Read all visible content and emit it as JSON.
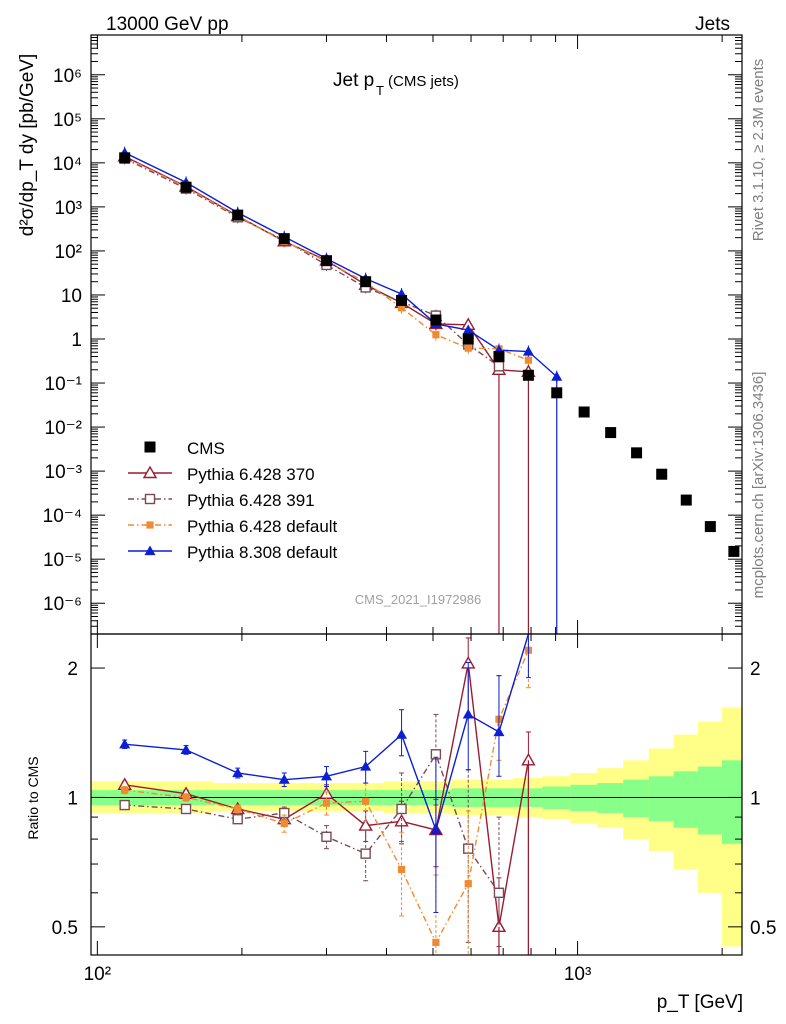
{
  "header": {
    "left": "13000 GeV pp",
    "right": "Jets"
  },
  "side": {
    "rivet": "Rivet 3.1.10, ≥ 2.3M events",
    "mcplots": "mcplots.cern.ch [arXiv:1306.3436]"
  },
  "plot": {
    "title_main": "Jet p",
    "title_sub": "T",
    "title_extra": "(CMS jets)",
    "analysis": "CMS_2021_I1972986",
    "ylabel_top": "d²σ/dp_T dy [pb/GeV]",
    "ylabel_bottom": "Ratio to CMS",
    "xlabel": "p_T [GeV]"
  },
  "chart_data": [
    {
      "type": "scatter",
      "panel": "main",
      "xscale": "log",
      "yscale": "log",
      "xlim": [
        97,
        2200
      ],
      "ylim": [
        2e-07,
        8000000.0
      ],
      "xlabel": "p_T [GeV]",
      "ylabel": "d²σ/dp_T dy [pb/GeV]",
      "x_ticks": [
        "10²",
        "10³"
      ],
      "y_ticks": [
        "10⁻⁶",
        "10⁻⁵",
        "10⁻⁴",
        "10⁻³",
        "10⁻²",
        "10⁻¹",
        "1",
        "10",
        "10²",
        "10³",
        "10⁴",
        "10⁵",
        "10⁶"
      ],
      "legend_position": "bottom-left",
      "series": [
        {
          "name": "CMS",
          "color": "#000000",
          "marker": "square",
          "x": [
            114,
            153,
            196,
            245,
            300,
            362,
            430,
            507,
            592,
            686,
            790,
            905,
            1032,
            1172,
            1327,
            1497,
            1684,
            1890,
            2116
          ],
          "y": [
            13000,
            2800,
            650,
            190,
            60,
            20,
            7.5,
            2.7,
            1.0,
            0.4,
            0.15,
            0.06,
            0.022,
            0.0075,
            0.0026,
            0.00085,
            0.00022,
            5.5e-05,
            1.5e-05
          ]
        },
        {
          "name": "Pythia 6.428 370",
          "color": "#9b1b30",
          "marker": "triangle-open",
          "dash": "solid",
          "x": [
            114,
            153,
            196,
            245,
            300,
            362,
            430,
            507,
            592,
            686,
            790
          ],
          "y": [
            14000,
            2900,
            620,
            165,
            61,
            17,
            6.6,
            2.2,
            2.1,
            0.2,
            0.18
          ]
        },
        {
          "name": "Pythia 6.428 391",
          "color": "#7a4a55",
          "marker": "square-open",
          "dash": "dashdot",
          "x": [
            114,
            153,
            196,
            245,
            300,
            362,
            430,
            507,
            592,
            686
          ],
          "y": [
            12500,
            2600,
            580,
            175,
            48,
            14.8,
            7.0,
            3.4,
            0.75,
            0.24
          ]
        },
        {
          "name": "Pythia 6.428 default",
          "color": "#f08a30",
          "marker": "square-filled",
          "dash": "dashdot",
          "x": [
            114,
            153,
            196,
            245,
            300,
            362,
            430,
            507,
            592,
            686,
            790
          ],
          "y": [
            13500,
            2800,
            610,
            165,
            58,
            19.5,
            5.1,
            1.25,
            0.62,
            0.6,
            0.33
          ]
        },
        {
          "name": "Pythia 8.308 default",
          "color": "#0b1fd6",
          "marker": "triangle-filled",
          "dash": "solid",
          "x": [
            114,
            153,
            196,
            245,
            300,
            362,
            430,
            507,
            592,
            686,
            790,
            905
          ],
          "y": [
            17000,
            3600,
            740,
            210,
            67,
            23.5,
            10.5,
            2.2,
            1.6,
            0.56,
            0.52,
            0.14
          ]
        }
      ]
    },
    {
      "type": "scatter",
      "panel": "ratio",
      "xscale": "log",
      "yscale": "log",
      "xlim": [
        97,
        2200
      ],
      "ylim": [
        0.43,
        2.4
      ],
      "xlabel": "p_T [GeV]",
      "ylabel": "Ratio to CMS",
      "y_ticks": [
        "0.5",
        "1",
        "2"
      ],
      "band_x_edges": [
        97,
        133,
        174,
        220,
        272,
        330,
        395,
        467,
        547,
        637,
        737,
        845,
        966,
        1098,
        1245,
        1407,
        1585,
        1781,
        1999,
        2200
      ],
      "band_yellow_lo": [
        0.92,
        0.92,
        0.93,
        0.93,
        0.93,
        0.93,
        0.92,
        0.92,
        0.91,
        0.91,
        0.9,
        0.89,
        0.87,
        0.85,
        0.8,
        0.75,
        0.68,
        0.6,
        0.45
      ],
      "band_yellow_hi": [
        1.09,
        1.09,
        1.08,
        1.08,
        1.08,
        1.08,
        1.09,
        1.09,
        1.1,
        1.1,
        1.11,
        1.12,
        1.14,
        1.17,
        1.22,
        1.3,
        1.4,
        1.5,
        1.62
      ],
      "band_green_lo": [
        0.96,
        0.96,
        0.96,
        0.96,
        0.96,
        0.96,
        0.96,
        0.96,
        0.95,
        0.95,
        0.95,
        0.94,
        0.93,
        0.92,
        0.9,
        0.88,
        0.85,
        0.82,
        0.78
      ],
      "band_green_hi": [
        1.04,
        1.04,
        1.04,
        1.04,
        1.04,
        1.04,
        1.04,
        1.04,
        1.05,
        1.05,
        1.05,
        1.06,
        1.07,
        1.08,
        1.1,
        1.12,
        1.15,
        1.18,
        1.22
      ],
      "series": [
        {
          "name": "Pythia 6.428 370",
          "color": "#9b1b30",
          "marker": "triangle-open",
          "dash": "solid",
          "x": [
            114,
            153,
            196,
            245,
            300,
            362,
            430,
            507,
            592,
            686,
            790
          ],
          "y": [
            1.07,
            1.02,
            0.94,
            0.89,
            1.02,
            0.86,
            0.88,
            0.84,
            2.05,
            0.5,
            1.22
          ],
          "err_lo": [
            0.02,
            0.02,
            0.02,
            0.03,
            0.05,
            0.07,
            0.1,
            0.15,
            0.5,
            0.1,
            0.9
          ],
          "err_hi": [
            0.02,
            0.02,
            0.02,
            0.03,
            0.05,
            0.07,
            0.1,
            0.15,
            0.3,
            0.15,
            0.2
          ]
        },
        {
          "name": "Pythia 6.428 391",
          "color": "#7a4a55",
          "marker": "square-open",
          "dash": "dashdot",
          "x": [
            114,
            153,
            196,
            245,
            300,
            362,
            430,
            507,
            592,
            686
          ],
          "y": [
            0.96,
            0.94,
            0.89,
            0.92,
            0.81,
            0.74,
            0.94,
            1.26,
            0.76,
            0.6
          ],
          "err_lo": [
            0.02,
            0.02,
            0.02,
            0.03,
            0.05,
            0.1,
            0.15,
            0.3,
            0.3,
            0.15
          ],
          "err_hi": [
            0.02,
            0.02,
            0.02,
            0.03,
            0.05,
            0.1,
            0.2,
            0.3,
            0.4,
            0.3
          ]
        },
        {
          "name": "Pythia 6.428 default",
          "color": "#f08a30",
          "marker": "square-filled",
          "dash": "dashdot",
          "x": [
            114,
            153,
            196,
            245,
            300,
            362,
            430,
            507,
            592,
            686,
            790
          ],
          "y": [
            1.04,
            1.0,
            0.94,
            0.87,
            0.97,
            0.98,
            0.68,
            0.46,
            0.63,
            1.52,
            2.2
          ],
          "err_lo": [
            0.02,
            0.02,
            0.02,
            0.04,
            0.06,
            0.1,
            0.15,
            0.1,
            0.2,
            0.3,
            0.4
          ],
          "err_hi": [
            0.02,
            0.02,
            0.02,
            0.04,
            0.06,
            0.1,
            0.15,
            0.2,
            0.3,
            0.4,
            0.2
          ]
        },
        {
          "name": "Pythia 8.308 default",
          "color": "#0b1fd6",
          "marker": "triangle-filled",
          "dash": "solid",
          "x": [
            114,
            153,
            196,
            245,
            300,
            362,
            430,
            507,
            592,
            686,
            790
          ],
          "y": [
            1.33,
            1.29,
            1.14,
            1.1,
            1.12,
            1.18,
            1.4,
            0.84,
            1.56,
            1.42,
            2.4
          ],
          "err_lo": [
            0.03,
            0.03,
            0.03,
            0.04,
            0.06,
            0.1,
            0.15,
            0.3,
            0.4,
            0.3,
            0.5
          ],
          "err_hi": [
            0.03,
            0.03,
            0.03,
            0.04,
            0.06,
            0.1,
            0.2,
            0.4,
            0.5,
            0.5,
            0.2
          ]
        }
      ]
    }
  ]
}
